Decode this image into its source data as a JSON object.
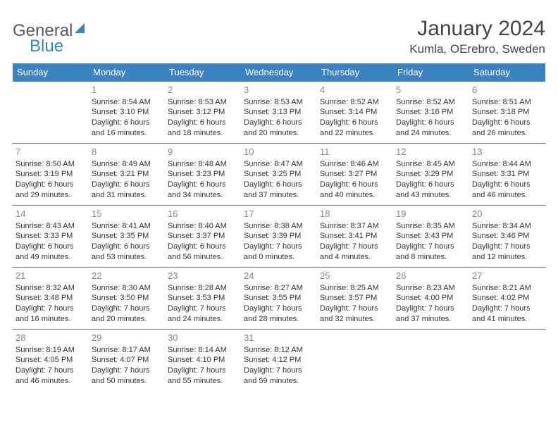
{
  "branding": {
    "logo_text_1": "General",
    "logo_text_2": "Blue",
    "logo_color_gray": "#5a5a5a",
    "logo_color_blue": "#3b83c0"
  },
  "header": {
    "title": "January 2024",
    "location": "Kumla, OErebro, Sweden"
  },
  "theme": {
    "header_bg": "#3b83c0",
    "header_fg": "#ffffff",
    "border_color": "#3b83c0",
    "text_color": "#333333",
    "daynum_color": "#888888",
    "background": "#ffffff",
    "font_family": "Arial, Helvetica, sans-serif",
    "title_fontsize": 30,
    "location_fontsize": 17,
    "dayheader_fontsize": 13,
    "cell_fontsize": 11
  },
  "day_names": [
    "Sunday",
    "Monday",
    "Tuesday",
    "Wednesday",
    "Thursday",
    "Friday",
    "Saturday"
  ],
  "weeks": [
    [
      {
        "day": "",
        "sunrise": "",
        "sunset": "",
        "daylight1": "",
        "daylight2": ""
      },
      {
        "day": "1",
        "sunrise": "Sunrise: 8:54 AM",
        "sunset": "Sunset: 3:10 PM",
        "daylight1": "Daylight: 6 hours",
        "daylight2": "and 16 minutes."
      },
      {
        "day": "2",
        "sunrise": "Sunrise: 8:53 AM",
        "sunset": "Sunset: 3:12 PM",
        "daylight1": "Daylight: 6 hours",
        "daylight2": "and 18 minutes."
      },
      {
        "day": "3",
        "sunrise": "Sunrise: 8:53 AM",
        "sunset": "Sunset: 3:13 PM",
        "daylight1": "Daylight: 6 hours",
        "daylight2": "and 20 minutes."
      },
      {
        "day": "4",
        "sunrise": "Sunrise: 8:52 AM",
        "sunset": "Sunset: 3:14 PM",
        "daylight1": "Daylight: 6 hours",
        "daylight2": "and 22 minutes."
      },
      {
        "day": "5",
        "sunrise": "Sunrise: 8:52 AM",
        "sunset": "Sunset: 3:16 PM",
        "daylight1": "Daylight: 6 hours",
        "daylight2": "and 24 minutes."
      },
      {
        "day": "6",
        "sunrise": "Sunrise: 8:51 AM",
        "sunset": "Sunset: 3:18 PM",
        "daylight1": "Daylight: 6 hours",
        "daylight2": "and 26 minutes."
      }
    ],
    [
      {
        "day": "7",
        "sunrise": "Sunrise: 8:50 AM",
        "sunset": "Sunset: 3:19 PM",
        "daylight1": "Daylight: 6 hours",
        "daylight2": "and 29 minutes."
      },
      {
        "day": "8",
        "sunrise": "Sunrise: 8:49 AM",
        "sunset": "Sunset: 3:21 PM",
        "daylight1": "Daylight: 6 hours",
        "daylight2": "and 31 minutes."
      },
      {
        "day": "9",
        "sunrise": "Sunrise: 8:48 AM",
        "sunset": "Sunset: 3:23 PM",
        "daylight1": "Daylight: 6 hours",
        "daylight2": "and 34 minutes."
      },
      {
        "day": "10",
        "sunrise": "Sunrise: 8:47 AM",
        "sunset": "Sunset: 3:25 PM",
        "daylight1": "Daylight: 6 hours",
        "daylight2": "and 37 minutes."
      },
      {
        "day": "11",
        "sunrise": "Sunrise: 8:46 AM",
        "sunset": "Sunset: 3:27 PM",
        "daylight1": "Daylight: 6 hours",
        "daylight2": "and 40 minutes."
      },
      {
        "day": "12",
        "sunrise": "Sunrise: 8:45 AM",
        "sunset": "Sunset: 3:29 PM",
        "daylight1": "Daylight: 6 hours",
        "daylight2": "and 43 minutes."
      },
      {
        "day": "13",
        "sunrise": "Sunrise: 8:44 AM",
        "sunset": "Sunset: 3:31 PM",
        "daylight1": "Daylight: 6 hours",
        "daylight2": "and 46 minutes."
      }
    ],
    [
      {
        "day": "14",
        "sunrise": "Sunrise: 8:43 AM",
        "sunset": "Sunset: 3:33 PM",
        "daylight1": "Daylight: 6 hours",
        "daylight2": "and 49 minutes."
      },
      {
        "day": "15",
        "sunrise": "Sunrise: 8:41 AM",
        "sunset": "Sunset: 3:35 PM",
        "daylight1": "Daylight: 6 hours",
        "daylight2": "and 53 minutes."
      },
      {
        "day": "16",
        "sunrise": "Sunrise: 8:40 AM",
        "sunset": "Sunset: 3:37 PM",
        "daylight1": "Daylight: 6 hours",
        "daylight2": "and 56 minutes."
      },
      {
        "day": "17",
        "sunrise": "Sunrise: 8:38 AM",
        "sunset": "Sunset: 3:39 PM",
        "daylight1": "Daylight: 7 hours",
        "daylight2": "and 0 minutes."
      },
      {
        "day": "18",
        "sunrise": "Sunrise: 8:37 AM",
        "sunset": "Sunset: 3:41 PM",
        "daylight1": "Daylight: 7 hours",
        "daylight2": "and 4 minutes."
      },
      {
        "day": "19",
        "sunrise": "Sunrise: 8:35 AM",
        "sunset": "Sunset: 3:43 PM",
        "daylight1": "Daylight: 7 hours",
        "daylight2": "and 8 minutes."
      },
      {
        "day": "20",
        "sunrise": "Sunrise: 8:34 AM",
        "sunset": "Sunset: 3:46 PM",
        "daylight1": "Daylight: 7 hours",
        "daylight2": "and 12 minutes."
      }
    ],
    [
      {
        "day": "21",
        "sunrise": "Sunrise: 8:32 AM",
        "sunset": "Sunset: 3:48 PM",
        "daylight1": "Daylight: 7 hours",
        "daylight2": "and 16 minutes."
      },
      {
        "day": "22",
        "sunrise": "Sunrise: 8:30 AM",
        "sunset": "Sunset: 3:50 PM",
        "daylight1": "Daylight: 7 hours",
        "daylight2": "and 20 minutes."
      },
      {
        "day": "23",
        "sunrise": "Sunrise: 8:28 AM",
        "sunset": "Sunset: 3:53 PM",
        "daylight1": "Daylight: 7 hours",
        "daylight2": "and 24 minutes."
      },
      {
        "day": "24",
        "sunrise": "Sunrise: 8:27 AM",
        "sunset": "Sunset: 3:55 PM",
        "daylight1": "Daylight: 7 hours",
        "daylight2": "and 28 minutes."
      },
      {
        "day": "25",
        "sunrise": "Sunrise: 8:25 AM",
        "sunset": "Sunset: 3:57 PM",
        "daylight1": "Daylight: 7 hours",
        "daylight2": "and 32 minutes."
      },
      {
        "day": "26",
        "sunrise": "Sunrise: 8:23 AM",
        "sunset": "Sunset: 4:00 PM",
        "daylight1": "Daylight: 7 hours",
        "daylight2": "and 37 minutes."
      },
      {
        "day": "27",
        "sunrise": "Sunrise: 8:21 AM",
        "sunset": "Sunset: 4:02 PM",
        "daylight1": "Daylight: 7 hours",
        "daylight2": "and 41 minutes."
      }
    ],
    [
      {
        "day": "28",
        "sunrise": "Sunrise: 8:19 AM",
        "sunset": "Sunset: 4:05 PM",
        "daylight1": "Daylight: 7 hours",
        "daylight2": "and 46 minutes."
      },
      {
        "day": "29",
        "sunrise": "Sunrise: 8:17 AM",
        "sunset": "Sunset: 4:07 PM",
        "daylight1": "Daylight: 7 hours",
        "daylight2": "and 50 minutes."
      },
      {
        "day": "30",
        "sunrise": "Sunrise: 8:14 AM",
        "sunset": "Sunset: 4:10 PM",
        "daylight1": "Daylight: 7 hours",
        "daylight2": "and 55 minutes."
      },
      {
        "day": "31",
        "sunrise": "Sunrise: 8:12 AM",
        "sunset": "Sunset: 4:12 PM",
        "daylight1": "Daylight: 7 hours",
        "daylight2": "and 59 minutes."
      },
      {
        "day": "",
        "sunrise": "",
        "sunset": "",
        "daylight1": "",
        "daylight2": ""
      },
      {
        "day": "",
        "sunrise": "",
        "sunset": "",
        "daylight1": "",
        "daylight2": ""
      },
      {
        "day": "",
        "sunrise": "",
        "sunset": "",
        "daylight1": "",
        "daylight2": ""
      }
    ]
  ]
}
